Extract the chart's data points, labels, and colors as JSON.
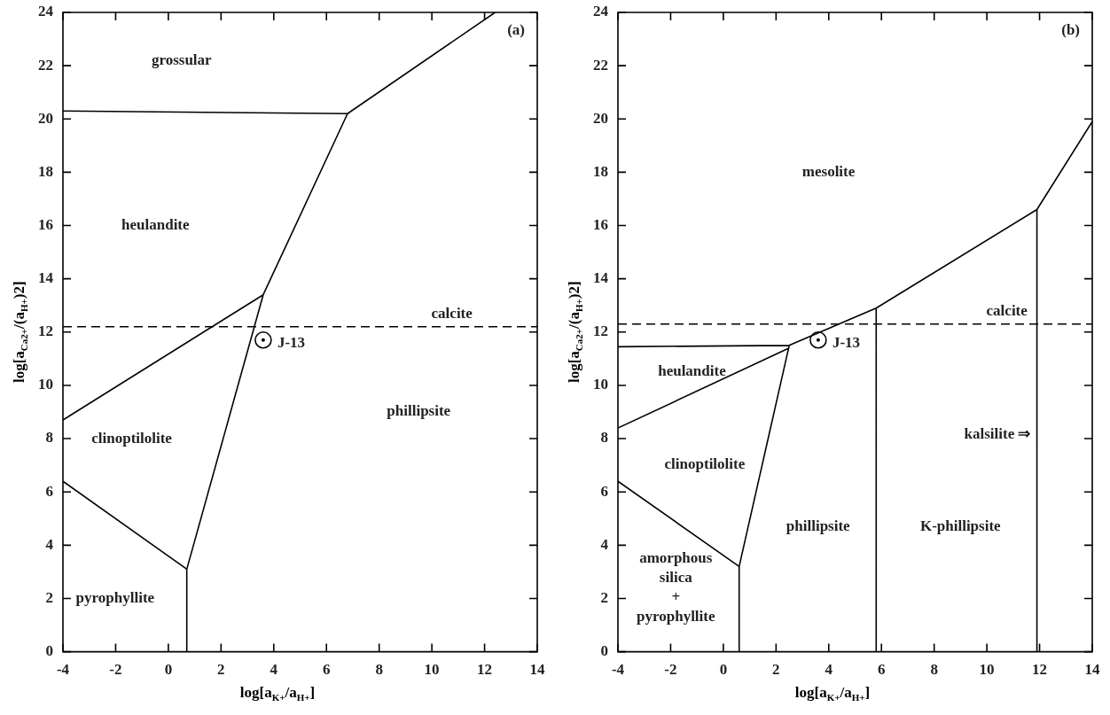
{
  "chart_data": [
    {
      "type": "line",
      "xlabel": "log[a$_{K+}$/a$_{H+}$]",
      "ylabel": "log[a$_{Ca2+}$/(a$_{H+}$)2]",
      "xlim": [
        -4,
        14
      ],
      "ylim": [
        0,
        24
      ],
      "xticks": [
        -4,
        -2,
        0,
        2,
        4,
        6,
        8,
        10,
        12,
        14
      ],
      "yticks": [
        0,
        2,
        4,
        6,
        8,
        10,
        12,
        14,
        16,
        18,
        20,
        22,
        24
      ],
      "grid": false,
      "legend": false,
      "marker": "none",
      "line_style": "solid",
      "ref_lines": [
        {
          "axis": "y",
          "value": 12.2,
          "label": "calcite",
          "line_style": "dashed",
          "color": "#000000"
        }
      ],
      "annotations": [
        "(a)",
        "grossular",
        "heulandite",
        "clinoptilolite",
        "pyrophyllite",
        "phillipsite"
      ],
      "series": [
        {
          "color": "#000000",
          "x": [
            -4,
            6.8,
            12.4,
            null,
            0.7,
            0.7,
            3.6,
            6.8,
            null,
            -4,
            3.6,
            null,
            -4,
            0.7
          ],
          "values": [
            20.3,
            20.2,
            24,
            null,
            0,
            3.1,
            13.4,
            20.2,
            null,
            8.7,
            13.4,
            null,
            6.4,
            3.1
          ]
        },
        {
          "name": "J-13",
          "type": "scatter",
          "marker": "circle",
          "color": "#000000",
          "x": [
            3.6
          ],
          "values": [
            11.7
          ]
        }
      ]
    },
    {
      "type": "line",
      "xlabel": "log[a$_{K+}$/a$_{H+}$]",
      "ylabel": "log[a$_{Ca2+}$/(a$_{H+}$)2]",
      "xlim": [
        -4,
        14
      ],
      "ylim": [
        0,
        24
      ],
      "xticks": [
        -4,
        -2,
        0,
        2,
        4,
        6,
        8,
        10,
        12,
        14
      ],
      "yticks": [
        0,
        2,
        4,
        6,
        8,
        10,
        12,
        14,
        16,
        18,
        20,
        22,
        24
      ],
      "grid": false,
      "legend": false,
      "marker": "none",
      "line_style": "solid",
      "ref_lines": [
        {
          "axis": "y",
          "value": 12.3,
          "label": "calcite",
          "line_style": "dashed",
          "color": "#000000"
        }
      ],
      "annotations": [
        "(b)",
        "mesolite",
        "heulandite",
        "clinoptilolite",
        "phillipsite",
        "K-phillipsite",
        "kalsilite ⇒",
        "amorphous\nsilica\n+\npyrophyllite"
      ],
      "series": [
        {
          "color": "#000000",
          "x": [
            -4,
            2.5,
            5.8,
            11.9,
            14,
            null,
            0.6,
            0.6,
            2.5,
            null,
            -4,
            2.5,
            null,
            -4,
            0.6,
            null,
            5.8,
            5.8,
            null,
            11.9,
            11.9
          ],
          "values": [
            11.45,
            11.5,
            12.9,
            16.6,
            19.9,
            null,
            0,
            3.2,
            11.5,
            null,
            8.4,
            11.4,
            null,
            6.4,
            3.2,
            null,
            0,
            12.9,
            null,
            0,
            16.6
          ]
        },
        {
          "name": "J-13",
          "type": "scatter",
          "marker": "circle",
          "color": "#000000",
          "x": [
            3.6
          ],
          "values": [
            11.7
          ]
        }
      ]
    }
  ]
}
